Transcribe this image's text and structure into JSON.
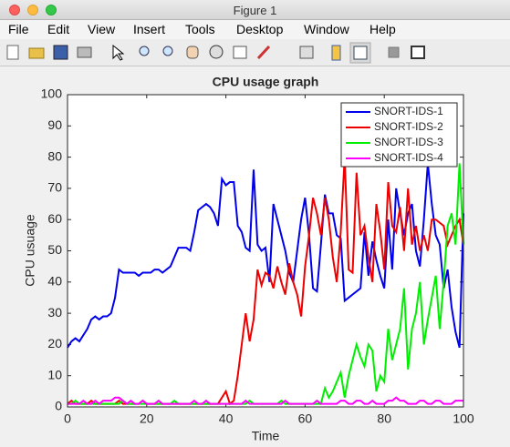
{
  "window": {
    "title": "Figure 1"
  },
  "menu": [
    "File",
    "Edit",
    "View",
    "Insert",
    "Tools",
    "Desktop",
    "Window",
    "Help"
  ],
  "chart_data": {
    "type": "line",
    "title": "CPU usage graph",
    "x_label": "Time",
    "y_label": "CPU usuage",
    "xlim": [
      0,
      100
    ],
    "ylim": [
      0,
      100
    ],
    "xticks": [
      0,
      20,
      40,
      60,
      80,
      100
    ],
    "yticks": [
      0,
      10,
      20,
      30,
      40,
      50,
      60,
      70,
      80,
      90,
      100
    ],
    "legend": "northeast",
    "x": [
      0,
      1,
      2,
      3,
      4,
      5,
      6,
      7,
      8,
      9,
      10,
      11,
      12,
      13,
      14,
      15,
      16,
      17,
      18,
      19,
      20,
      21,
      22,
      23,
      24,
      25,
      26,
      27,
      28,
      29,
      30,
      31,
      32,
      33,
      34,
      35,
      36,
      37,
      38,
      39,
      40,
      41,
      42,
      43,
      44,
      45,
      46,
      47,
      48,
      49,
      50,
      51,
      52,
      53,
      54,
      55,
      56,
      57,
      58,
      59,
      60,
      61,
      62,
      63,
      64,
      65,
      66,
      67,
      68,
      69,
      70,
      71,
      72,
      73,
      74,
      75,
      76,
      77,
      78,
      79,
      80,
      81,
      82,
      83,
      84,
      85,
      86,
      87,
      88,
      89,
      90,
      91,
      92,
      93,
      94,
      95,
      96,
      97,
      98,
      99,
      100
    ],
    "series": [
      {
        "name": "SNORT-IDS-1",
        "color": "#0000ee",
        "values": [
          19,
          21,
          22,
          21,
          23,
          25,
          28,
          29,
          28,
          29,
          29,
          30,
          35,
          44,
          43,
          43,
          43,
          43,
          42,
          43,
          43,
          43,
          44,
          44,
          43,
          44,
          45,
          48,
          51,
          51,
          51,
          50,
          56,
          63,
          64,
          65,
          64,
          62,
          58,
          73,
          71,
          72,
          72,
          58,
          56,
          51,
          50,
          76,
          52,
          50,
          51,
          40,
          65,
          60,
          55,
          50,
          43,
          40,
          50,
          60,
          67,
          55,
          38,
          37,
          52,
          68,
          62,
          62,
          55,
          54,
          34,
          35,
          36,
          37,
          38,
          56,
          42,
          53,
          47,
          42,
          38,
          60,
          44,
          70,
          62,
          55,
          62,
          65,
          50,
          45,
          60,
          78,
          65,
          55,
          52,
          38,
          44,
          32,
          24,
          19,
          62
        ]
      },
      {
        "name": "SNORT-IDS-2",
        "color": "#ee0000",
        "values": [
          1,
          2,
          1,
          1,
          1,
          1,
          2,
          1,
          1,
          1,
          1,
          1,
          1,
          2,
          1,
          1,
          1,
          1,
          1,
          2,
          1,
          1,
          1,
          1,
          1,
          1,
          1,
          1,
          1,
          1,
          1,
          1,
          1,
          1,
          1,
          1,
          1,
          1,
          1,
          3,
          5,
          1,
          2,
          10,
          20,
          30,
          21,
          28,
          44,
          39,
          43,
          42,
          38,
          45,
          40,
          36,
          46,
          40,
          36,
          29,
          45,
          55,
          67,
          62,
          55,
          67,
          60,
          48,
          40,
          56,
          80,
          44,
          43,
          75,
          55,
          58,
          48,
          40,
          65,
          56,
          44,
          72,
          58,
          56,
          64,
          50,
          70,
          52,
          58,
          50,
          55,
          50,
          60,
          60,
          59,
          58,
          52,
          55,
          58,
          60,
          52
        ]
      },
      {
        "name": "SNORT-IDS-3",
        "color": "#00ee00",
        "values": [
          1,
          1,
          2,
          1,
          1,
          1,
          1,
          1,
          1,
          1,
          1,
          1,
          1,
          1,
          2,
          1,
          1,
          1,
          1,
          1,
          1,
          1,
          1,
          1,
          1,
          1,
          1,
          2,
          1,
          1,
          1,
          1,
          1,
          1,
          1,
          1,
          1,
          1,
          1,
          1,
          1,
          1,
          1,
          1,
          1,
          1,
          2,
          1,
          1,
          1,
          1,
          1,
          1,
          1,
          2,
          1,
          1,
          1,
          1,
          1,
          1,
          1,
          1,
          1,
          1,
          6,
          3,
          5,
          8,
          11,
          3,
          10,
          15,
          20,
          16,
          13,
          20,
          18,
          5,
          10,
          8,
          25,
          15,
          20,
          25,
          38,
          12,
          25,
          30,
          40,
          20,
          28,
          35,
          42,
          25,
          40,
          58,
          62,
          52,
          78,
          52
        ]
      },
      {
        "name": "SNORT-IDS-4",
        "color": "#ff00ff",
        "values": [
          1,
          1,
          1,
          1,
          2,
          1,
          1,
          2,
          1,
          2,
          2,
          2,
          3,
          3,
          2,
          1,
          2,
          1,
          1,
          2,
          1,
          1,
          1,
          2,
          1,
          1,
          1,
          1,
          1,
          1,
          1,
          1,
          2,
          1,
          1,
          2,
          1,
          1,
          1,
          1,
          1,
          1,
          1,
          1,
          1,
          2,
          1,
          1,
          1,
          1,
          1,
          1,
          1,
          1,
          1,
          2,
          1,
          1,
          1,
          1,
          1,
          1,
          1,
          2,
          1,
          1,
          1,
          1,
          1,
          2,
          2,
          1,
          1,
          2,
          2,
          1,
          1,
          2,
          1,
          1,
          1,
          2,
          2,
          3,
          2,
          2,
          1,
          1,
          1,
          2,
          2,
          1,
          1,
          2,
          2,
          1,
          1,
          1,
          2,
          2,
          2
        ]
      }
    ]
  }
}
